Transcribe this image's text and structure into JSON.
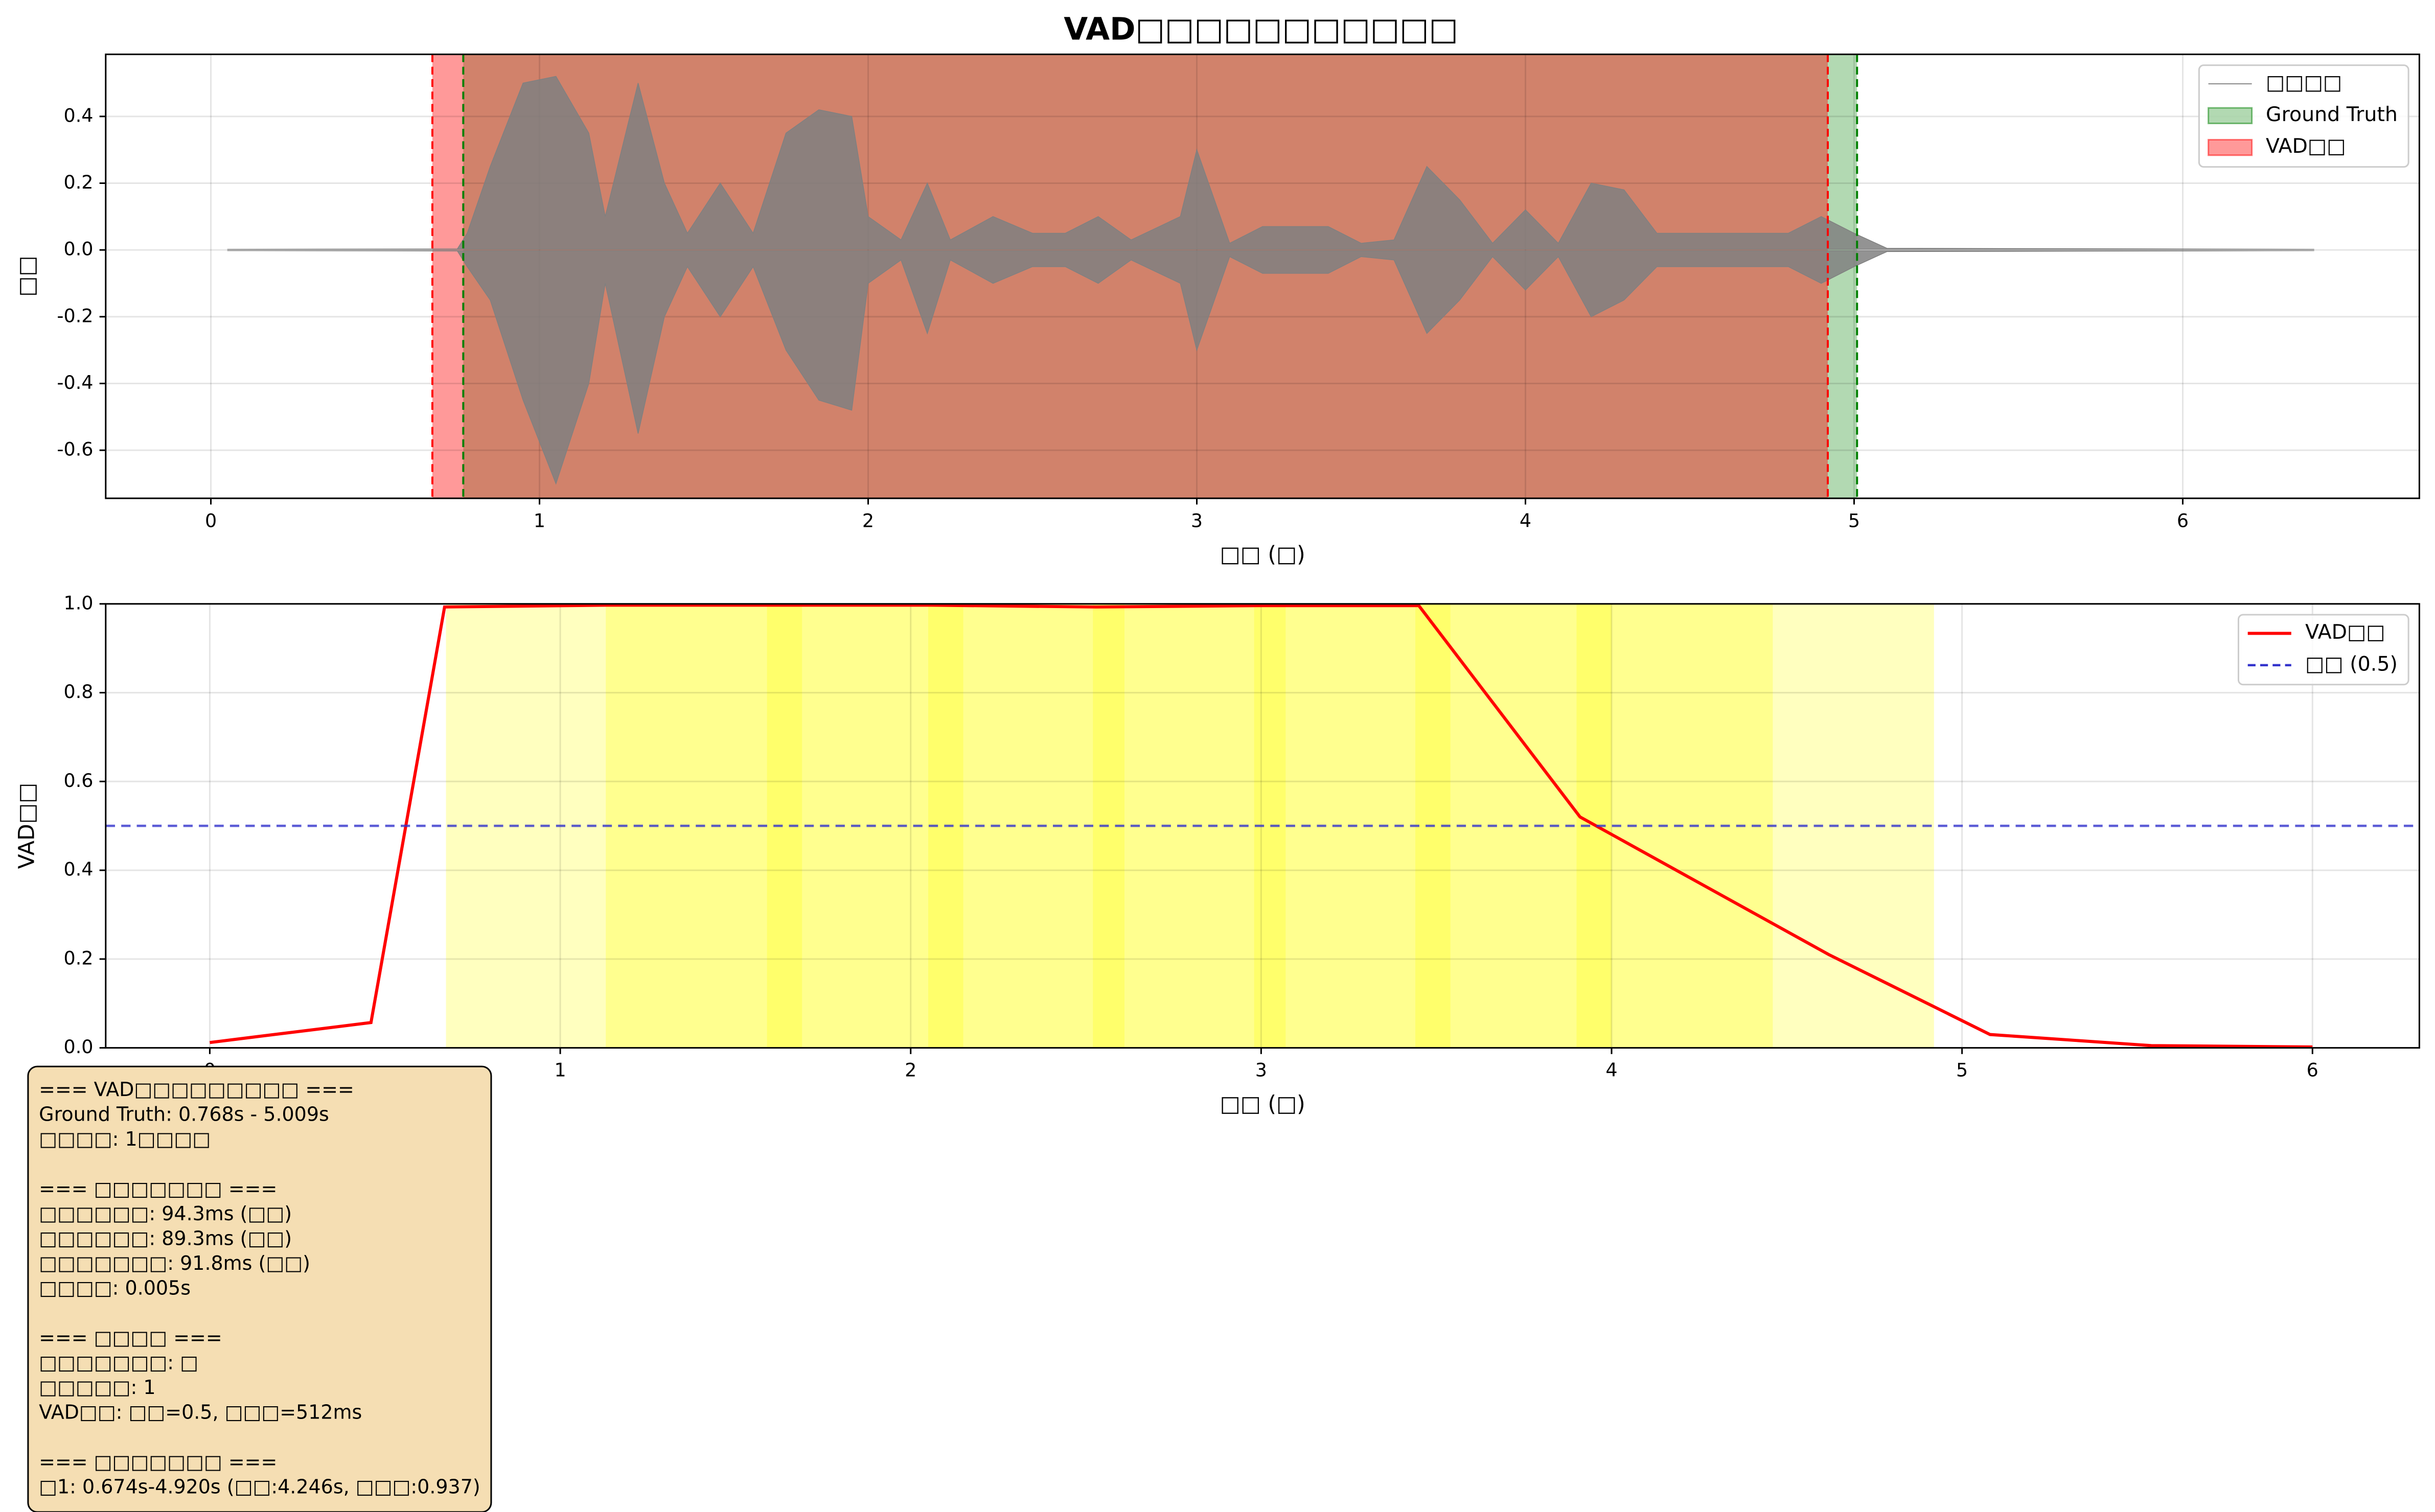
{
  "title": "VAD□□□□□□□□□□□",
  "chart_data": [
    {
      "type": "line",
      "ylabel": "□□",
      "xlabel": "□□ (□)",
      "xlim": [
        -0.32,
        6.72
      ],
      "ylim": [
        -0.744,
        0.586
      ],
      "xticks": [
        0,
        1,
        2,
        3,
        4,
        5,
        6
      ],
      "yticks": [
        {
          "value": -0.6,
          "label": "-0.6"
        },
        {
          "value": -0.4,
          "label": "-0.4"
        },
        {
          "value": -0.2,
          "label": "-0.2"
        },
        {
          "value": 0,
          "label": "0.0"
        },
        {
          "value": 0.2,
          "label": "0.2"
        },
        {
          "value": 0.4,
          "label": "0.4"
        }
      ],
      "grid": true,
      "legend": "upper right",
      "regions": [
        {
          "name": "Ground Truth",
          "color": "green",
          "alpha": 0.3,
          "start": 0.768,
          "end": 5.009
        },
        {
          "name": "VAD□□",
          "color": "red",
          "alpha": 0.4,
          "start": 0.674,
          "end": 4.92
        }
      ],
      "series": [
        {
          "name": "□□□□",
          "color": "#808080",
          "x": [
            0.05,
            0.75,
            0.78,
            0.85,
            0.95,
            1.05,
            1.15,
            1.2,
            1.3,
            1.38,
            1.45,
            1.55,
            1.65,
            1.75,
            1.85,
            1.95,
            2.0,
            2.1,
            2.18,
            2.25,
            2.38,
            2.5,
            2.6,
            2.7,
            2.8,
            2.95,
            3.0,
            3.1,
            3.2,
            3.4,
            3.5,
            3.6,
            3.7,
            3.8,
            3.9,
            4.0,
            4.1,
            4.2,
            4.3,
            4.4,
            4.6,
            4.8,
            4.9,
            5.0,
            5.1,
            6.4
          ],
          "upper": [
            0.002,
            0.003,
            0.05,
            0.25,
            0.5,
            0.52,
            0.35,
            0.1,
            0.5,
            0.2,
            0.05,
            0.2,
            0.05,
            0.35,
            0.42,
            0.4,
            0.1,
            0.03,
            0.2,
            0.03,
            0.1,
            0.05,
            0.05,
            0.1,
            0.03,
            0.1,
            0.3,
            0.02,
            0.07,
            0.07,
            0.02,
            0.03,
            0.25,
            0.15,
            0.02,
            0.12,
            0.02,
            0.2,
            0.18,
            0.05,
            0.05,
            0.05,
            0.1,
            0.05,
            0.005,
            0.002
          ],
          "lower": [
            -0.002,
            -0.003,
            -0.05,
            -0.15,
            -0.45,
            -0.7,
            -0.4,
            -0.1,
            -0.55,
            -0.2,
            -0.05,
            -0.2,
            -0.05,
            -0.3,
            -0.45,
            -0.48,
            -0.1,
            -0.03,
            -0.25,
            -0.03,
            -0.1,
            -0.05,
            -0.05,
            -0.1,
            -0.03,
            -0.1,
            -0.3,
            -0.02,
            -0.07,
            -0.07,
            -0.02,
            -0.03,
            -0.25,
            -0.15,
            -0.02,
            -0.12,
            -0.02,
            -0.2,
            -0.15,
            -0.05,
            -0.05,
            -0.05,
            -0.1,
            -0.05,
            -0.005,
            -0.002
          ]
        }
      ]
    },
    {
      "type": "line",
      "ylabel": "VAD□□",
      "xlabel": "□□ (□)",
      "xlim": [
        -0.297,
        6.305
      ],
      "ylim": [
        0,
        1
      ],
      "xticks": [
        0,
        1,
        2,
        3,
        4,
        5,
        6
      ],
      "yticks": [
        {
          "value": 0,
          "label": "0.0"
        },
        {
          "value": 0.2,
          "label": "0.2"
        },
        {
          "value": 0.4,
          "label": "0.4"
        },
        {
          "value": 0.6,
          "label": "0.6"
        },
        {
          "value": 0.8,
          "label": "0.8"
        },
        {
          "value": 1,
          "label": "1.0"
        }
      ],
      "grid": true,
      "legend": "upper right",
      "spans": {
        "color": "yellow",
        "alpha": 0.25,
        "starts": [
          0.674,
          1.13,
          1.59,
          2.05,
          2.52,
          2.98,
          3.44,
          3.9
        ],
        "ends": [
          1.69,
          2.15,
          2.61,
          3.07,
          3.54,
          4.0,
          4.46,
          4.92
        ]
      },
      "series": [
        {
          "name": "VAD□□",
          "color": "red",
          "x": [
            0,
            0.46,
            0.67,
            1.13,
            1.6,
            2.06,
            2.53,
            2.99,
            3.45,
            3.91,
            4.62,
            5.08,
            5.54,
            6.0
          ],
          "values": [
            0.012,
            0.057,
            0.993,
            0.997,
            0.997,
            0.997,
            0.993,
            0.996,
            0.996,
            0.52,
            0.21,
            0.03,
            0.005,
            0.002
          ]
        }
      ],
      "threshold": {
        "name": "□□ (0.5)",
        "value": 0.5,
        "color": "#3333cc"
      }
    }
  ],
  "text_box": [
    [
      "=== VAD□□□□□□□□□ ===",
      "Ground Truth: 0.768s - 5.009s",
      "□□□□: 1□□□□"
    ],
    [
      "=== □□□□□□□ ===",
      "□□□□□□: 94.3ms (□□)",
      "□□□□□□: 89.3ms (□□)",
      "□□□□□□□: 91.8ms (□□)",
      "□□□□: 0.005s"
    ],
    [
      "=== □□□□ ===",
      "□□□□□□□: □",
      "□□□□□: 1",
      "VAD□□: □□=0.5, □□□=512ms"
    ],
    [
      "=== □□□□□□□ ===",
      "□1: 0.674s-4.920s (□□:4.246s, □□□:0.937)"
    ]
  ]
}
